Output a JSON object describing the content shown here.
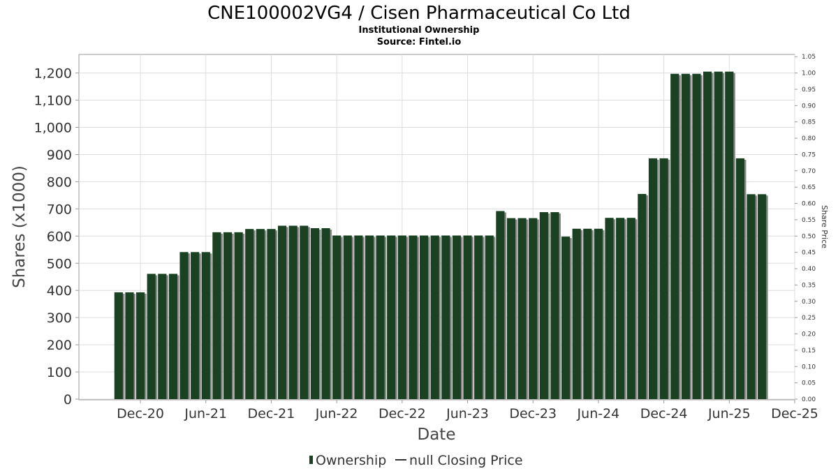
{
  "chart_data": {
    "type": "bar",
    "title": "CNE100002VG4 / Cisen Pharmaceutical Co Ltd",
    "subtitle_lines": [
      "Institutional Ownership",
      "Source: Fintel.io"
    ],
    "xlabel": "Date",
    "ylabel": "Shares (x1000)",
    "y2label": "Share Price",
    "ylim": [
      0,
      1260
    ],
    "y2lim": [
      0,
      1.05
    ],
    "y_ticks": [
      0,
      100,
      200,
      300,
      400,
      500,
      600,
      700,
      800,
      900,
      1000,
      1100,
      1200
    ],
    "y_tick_labels": [
      "0",
      "100",
      "200",
      "300",
      "400",
      "500",
      "600",
      "700",
      "800",
      "900",
      "1,000",
      "1,100",
      "1,200"
    ],
    "y2_ticks": [
      0,
      0.05,
      0.1,
      0.15,
      0.2,
      0.25,
      0.3,
      0.35,
      0.4,
      0.45,
      0.5,
      0.55,
      0.6,
      0.65,
      0.7,
      0.75,
      0.8,
      0.85,
      0.9,
      0.95,
      1.0,
      1.05
    ],
    "y2_tick_labels": [
      "0.00",
      "0.05",
      "0.10",
      "0.15",
      "0.20",
      "0.25",
      "0.30",
      "0.35",
      "0.40",
      "0.45",
      "0.50",
      "0.55",
      "0.60",
      "0.65",
      "0.70",
      "0.75",
      "0.80",
      "0.85",
      "0.90",
      "0.95",
      "1.00",
      "1.05"
    ],
    "x_tick_labels": [
      "Dec-20",
      "Jun-21",
      "Dec-21",
      "Jun-22",
      "Dec-22",
      "Jun-23",
      "Dec-23",
      "Jun-24",
      "Dec-24",
      "Jun-25",
      "Dec-25"
    ],
    "x_range": [
      "2020-07",
      "2025-12"
    ],
    "grid": true,
    "legend_position": "bottom-center",
    "legend": [
      {
        "label": "Ownership",
        "marker": "bar",
        "color": "#1a4222"
      },
      {
        "label": "null Closing Price",
        "marker": "line",
        "color": "#333333"
      }
    ],
    "series": [
      {
        "name": "Ownership",
        "color": "#1a4222",
        "shadow_color": "#8a8a8a",
        "points": [
          {
            "date": "2020-10",
            "value": 393
          },
          {
            "date": "2020-11",
            "value": 393
          },
          {
            "date": "2020-12",
            "value": 393
          },
          {
            "date": "2021-01",
            "value": 461
          },
          {
            "date": "2021-02",
            "value": 461
          },
          {
            "date": "2021-03",
            "value": 461
          },
          {
            "date": "2021-04",
            "value": 541
          },
          {
            "date": "2021-05",
            "value": 541
          },
          {
            "date": "2021-06",
            "value": 541
          },
          {
            "date": "2021-07",
            "value": 614
          },
          {
            "date": "2021-08",
            "value": 614
          },
          {
            "date": "2021-09",
            "value": 614
          },
          {
            "date": "2021-10",
            "value": 626
          },
          {
            "date": "2021-11",
            "value": 626
          },
          {
            "date": "2021-12",
            "value": 626
          },
          {
            "date": "2022-01",
            "value": 638
          },
          {
            "date": "2022-02",
            "value": 638
          },
          {
            "date": "2022-03",
            "value": 638
          },
          {
            "date": "2022-04",
            "value": 629
          },
          {
            "date": "2022-05",
            "value": 629
          },
          {
            "date": "2022-06",
            "value": 602
          },
          {
            "date": "2022-07",
            "value": 602
          },
          {
            "date": "2022-08",
            "value": 602
          },
          {
            "date": "2022-09",
            "value": 602
          },
          {
            "date": "2022-10",
            "value": 602
          },
          {
            "date": "2022-11",
            "value": 602
          },
          {
            "date": "2022-12",
            "value": 602
          },
          {
            "date": "2023-01",
            "value": 602
          },
          {
            "date": "2023-02",
            "value": 602
          },
          {
            "date": "2023-03",
            "value": 602
          },
          {
            "date": "2023-04",
            "value": 602
          },
          {
            "date": "2023-05",
            "value": 602
          },
          {
            "date": "2023-06",
            "value": 602
          },
          {
            "date": "2023-07",
            "value": 602
          },
          {
            "date": "2023-08",
            "value": 602
          },
          {
            "date": "2023-09",
            "value": 692
          },
          {
            "date": "2023-10",
            "value": 666
          },
          {
            "date": "2023-11",
            "value": 666
          },
          {
            "date": "2023-12",
            "value": 666
          },
          {
            "date": "2024-01",
            "value": 688
          },
          {
            "date": "2024-02",
            "value": 688
          },
          {
            "date": "2024-03",
            "value": 598
          },
          {
            "date": "2024-04",
            "value": 627
          },
          {
            "date": "2024-05",
            "value": 627
          },
          {
            "date": "2024-06",
            "value": 627
          },
          {
            "date": "2024-07",
            "value": 667
          },
          {
            "date": "2024-08",
            "value": 667
          },
          {
            "date": "2024-09",
            "value": 667
          },
          {
            "date": "2024-10",
            "value": 755
          },
          {
            "date": "2024-11",
            "value": 886
          },
          {
            "date": "2024-12",
            "value": 886
          },
          {
            "date": "2025-01",
            "value": 1197
          },
          {
            "date": "2025-02",
            "value": 1197
          },
          {
            "date": "2025-03",
            "value": 1197
          },
          {
            "date": "2025-04",
            "value": 1205
          },
          {
            "date": "2025-05",
            "value": 1205
          },
          {
            "date": "2025-06",
            "value": 1205
          },
          {
            "date": "2025-07",
            "value": 886
          },
          {
            "date": "2025-08",
            "value": 754
          },
          {
            "date": "2025-09",
            "value": 754
          }
        ]
      }
    ]
  }
}
